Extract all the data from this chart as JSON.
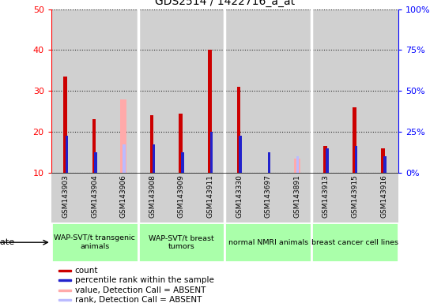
{
  "title": "GDS2514 / 1422716_a_at",
  "samples": [
    "GSM143903",
    "GSM143904",
    "GSM143906",
    "GSM143908",
    "GSM143909",
    "GSM143911",
    "GSM143330",
    "GSM143697",
    "GSM143891",
    "GSM143913",
    "GSM143915",
    "GSM143916"
  ],
  "count": [
    33.5,
    23,
    0,
    24,
    24.5,
    40,
    31,
    0,
    0,
    16.5,
    26,
    16
  ],
  "percentile_rank": [
    19,
    15,
    0,
    17,
    15,
    20,
    19,
    15,
    0,
    16,
    16.5,
    14
  ],
  "absent_value": [
    0,
    0,
    28,
    0,
    0,
    0,
    0,
    0,
    13.5,
    0,
    0,
    0
  ],
  "absent_rank": [
    0,
    0,
    17,
    0,
    0,
    0,
    0,
    0,
    14,
    0,
    0,
    0
  ],
  "ylim_left": [
    10,
    50
  ],
  "ylim_right": [
    0,
    100
  ],
  "yticks_left": [
    10,
    20,
    30,
    40,
    50
  ],
  "yticks_right": [
    0,
    25,
    50,
    75,
    100
  ],
  "ytick_labels_right": [
    "0%",
    "25%",
    "50%",
    "75%",
    "100%"
  ],
  "count_color": "#cc0000",
  "rank_color": "#2222cc",
  "absent_value_color": "#ffaaaa",
  "absent_rank_color": "#bbbbff",
  "bar_bg_color": "#d0d0d0",
  "group_configs": [
    {
      "label": "WAP-SVT/t transgenic\nanimals",
      "start": 0,
      "end": 3,
      "color": "#aaffaa"
    },
    {
      "label": "WAP-SVT/t breast\ntumors",
      "start": 3,
      "end": 6,
      "color": "#aaffaa"
    },
    {
      "label": "normal NMRI animals",
      "start": 6,
      "end": 9,
      "color": "#aaffaa"
    },
    {
      "label": "breast cancer cell lines",
      "start": 9,
      "end": 12,
      "color": "#aaffaa"
    }
  ],
  "legend_items": [
    {
      "label": "count",
      "color": "#cc0000"
    },
    {
      "label": "percentile rank within the sample",
      "color": "#2222cc"
    },
    {
      "label": "value, Detection Call = ABSENT",
      "color": "#ffaaaa"
    },
    {
      "label": "rank, Detection Call = ABSENT",
      "color": "#bbbbff"
    }
  ]
}
